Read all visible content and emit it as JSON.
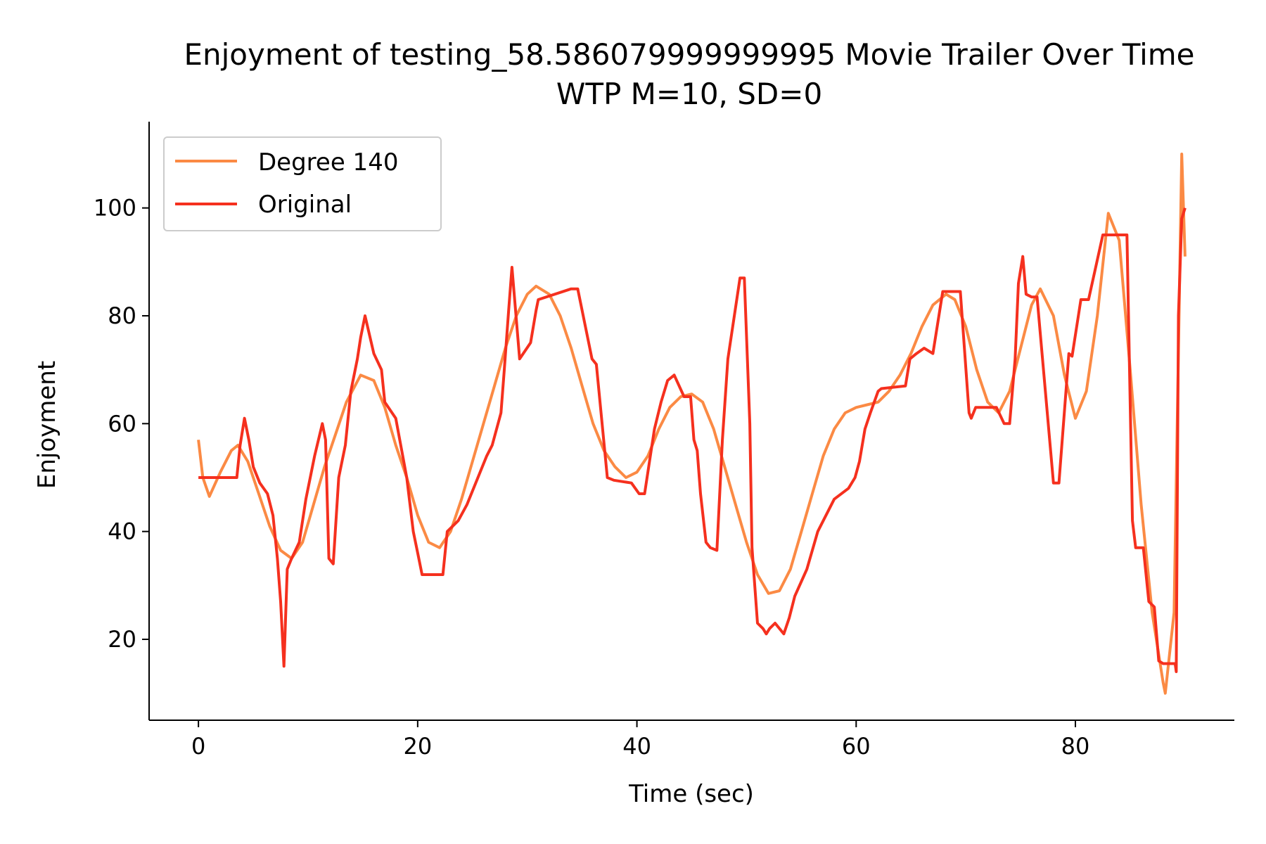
{
  "chart_data": {
    "type": "line",
    "title": "Enjoyment of testing_58.586079999999995 Movie Trailer Over Time",
    "subtitle": "WTP M=10, SD=0",
    "xlabel": "Time (sec)",
    "ylabel": "Enjoyment",
    "xlim": [
      -4.5,
      94.5
    ],
    "ylim": [
      5,
      116
    ],
    "xticks": [
      "0",
      "20",
      "40",
      "60",
      "80"
    ],
    "yticks": [
      "20",
      "40",
      "60",
      "80",
      "100"
    ],
    "grid": false,
    "legend_position": "top-left",
    "colors": {
      "fit": "#fb8a44",
      "original": "#f5301e"
    },
    "series": [
      {
        "name": "Degree 140",
        "x": [
          0,
          0.4,
          1,
          2,
          3,
          3.6,
          4.5,
          5.5,
          6.5,
          7.5,
          8.5,
          9.5,
          10.5,
          11.5,
          12.5,
          13.5,
          14.8,
          16,
          17,
          18,
          19,
          20,
          21,
          22,
          23,
          24,
          25,
          26,
          27,
          28,
          29,
          30,
          30.8,
          32,
          33,
          34,
          35,
          36,
          37,
          38,
          39,
          40,
          41,
          42,
          43,
          44,
          45,
          46,
          47,
          48,
          49,
          50,
          51,
          52,
          53,
          54,
          55,
          56,
          57,
          58,
          59,
          60,
          61,
          62,
          63,
          64,
          65,
          66,
          67,
          68.2,
          69,
          70,
          71,
          72,
          73,
          74,
          75,
          76,
          76.8,
          78,
          79,
          80,
          81,
          82,
          83,
          84,
          85,
          86,
          87,
          88,
          88.2,
          89,
          89.7,
          90
        ],
        "values": [
          57,
          50,
          46.5,
          51,
          55,
          56,
          53,
          47,
          41,
          36.5,
          35,
          38,
          45,
          52,
          58,
          64,
          69,
          68,
          63,
          56,
          50,
          43,
          38,
          37,
          40,
          46,
          53,
          60,
          67,
          74,
          80,
          84,
          85.5,
          84,
          80,
          74,
          67,
          60,
          55,
          52,
          50,
          51,
          54,
          59,
          63,
          65,
          65.5,
          64,
          59,
          52,
          45,
          38,
          32,
          28.5,
          29,
          33,
          40,
          47,
          54,
          59,
          62,
          63,
          63.5,
          64,
          66,
          69,
          73,
          78,
          82,
          84,
          83,
          78,
          70,
          64,
          62,
          66,
          74,
          82,
          85,
          80,
          69,
          61,
          66,
          80,
          99,
          94,
          70,
          45,
          25,
          12,
          10,
          25,
          110,
          91
        ]
      },
      {
        "name": "Original",
        "x": [
          0,
          3.5,
          3.8,
          4.2,
          4.6,
          5,
          5.6,
          6.3,
          6.8,
          7.2,
          7.5,
          7.8,
          8.1,
          8.5,
          9.2,
          9.8,
          10.6,
          11.3,
          11.6,
          11.9,
          12.3,
          12.8,
          13.4,
          13.9,
          14.5,
          14.8,
          15.2,
          16,
          16.7,
          17,
          18,
          19,
          19.6,
          20,
          20.4,
          21,
          22.3,
          22.7,
          23.7,
          24.5,
          26.3,
          26.8,
          27.6,
          27.9,
          28.3,
          28.6,
          29.3,
          30.3,
          30.8,
          31,
          34,
          34.6,
          35.9,
          36.3,
          37.3,
          37.9,
          39.5,
          40.2,
          40.7,
          41.3,
          41.6,
          42.2,
          42.8,
          43.4,
          44.3,
          44.9,
          45.2,
          45.5,
          45.8,
          46.3,
          46.7,
          47.3,
          47.8,
          48.3,
          49.4,
          49.8,
          50.3,
          50.5,
          51,
          51.5,
          51.8,
          52.1,
          52.6,
          53.4,
          53.9,
          54.4,
          55.5,
          56.5,
          58,
          59.3,
          59.9,
          60.3,
          60.8,
          61.3,
          62,
          62.3,
          64.5,
          64.9,
          65.5,
          66.2,
          67,
          67.9,
          68.2,
          69.5,
          70.3,
          70.5,
          70.9,
          71.6,
          72.8,
          73.5,
          74,
          74.5,
          74.8,
          75.2,
          75.5,
          76,
          76.5,
          78,
          78.5,
          79.4,
          79.7,
          80.5,
          81,
          81.2,
          82.5,
          83.3,
          84.7,
          85.2,
          85.5,
          86.2,
          86.7,
          87.2,
          87.6,
          88,
          89.1,
          89.2,
          89.4,
          89.7,
          90
        ],
        "values": [
          50,
          50,
          56,
          61,
          57,
          52,
          49,
          47,
          43,
          35,
          27,
          15,
          33,
          35,
          38,
          46,
          54,
          60,
          57,
          35,
          34,
          50,
          56,
          66,
          72,
          76,
          80,
          73,
          70,
          64,
          61,
          50,
          40,
          36,
          32,
          32,
          32,
          40,
          42,
          45,
          54,
          56,
          62,
          70,
          81,
          89,
          72,
          75,
          81,
          83,
          85,
          85,
          72,
          71,
          50,
          49.5,
          49,
          47,
          47,
          55,
          59,
          64,
          68,
          69,
          65,
          65,
          57,
          55,
          47,
          38,
          37,
          36.5,
          57,
          72,
          87,
          87,
          60,
          37,
          23,
          22,
          21,
          22,
          23,
          21,
          24,
          28,
          33,
          40,
          46,
          48,
          50,
          53,
          59,
          62,
          66,
          66.5,
          67,
          72,
          73,
          74,
          73,
          84.5,
          84.5,
          84.5,
          62,
          61,
          63,
          63,
          63,
          60,
          60,
          72,
          86,
          91,
          84,
          83.5,
          83.5,
          49,
          49,
          73,
          72.5,
          83,
          83,
          83,
          95,
          95,
          95,
          42,
          37,
          37,
          27,
          26,
          16,
          15.5,
          15.5,
          14,
          80,
          98,
          100
        ]
      }
    ]
  }
}
